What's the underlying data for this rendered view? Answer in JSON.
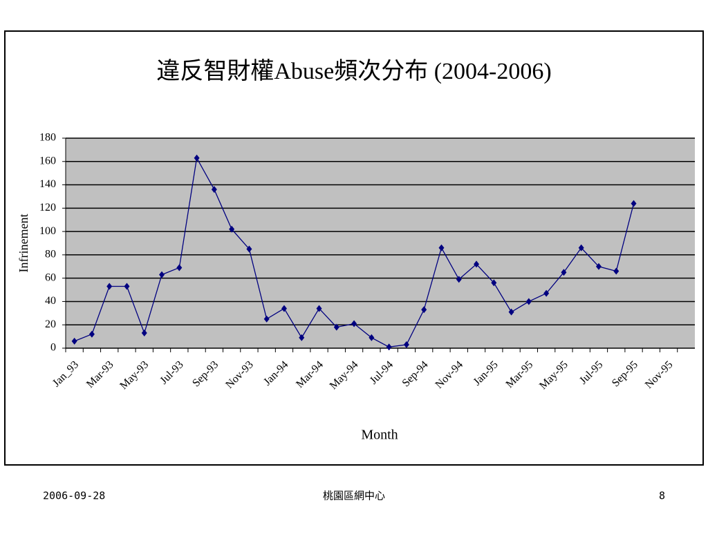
{
  "chart_data": {
    "type": "line",
    "title": "違反智財權Abuse頻次分布 (2004-2006)",
    "x_label": "Month",
    "y_label": "Infrinement",
    "categories": [
      "Jan_93",
      null,
      "Mar-93",
      null,
      "May-93",
      null,
      "Jul-93",
      null,
      "Sep-93",
      null,
      "Nov-93",
      null,
      "Jan-94",
      null,
      "Mar-94",
      null,
      "May-94",
      null,
      "Jul-94",
      null,
      "Sep-94",
      null,
      "Nov-94",
      null,
      "Jan-95",
      null,
      "Mar-95",
      null,
      "May-95",
      null,
      "Jul-95",
      null,
      "Sep-95",
      null,
      "Nov-95",
      null
    ],
    "series": [
      {
        "name": "Infrinement",
        "color": "#000080",
        "values": [
          6,
          12,
          53,
          53,
          13,
          63,
          69,
          163,
          136,
          102,
          85,
          25,
          34,
          9,
          34,
          18,
          21,
          9,
          1,
          3,
          33,
          86,
          59,
          72,
          56,
          31,
          40,
          47,
          65,
          86,
          70,
          66,
          124,
          null,
          null,
          null
        ]
      }
    ],
    "ylim": [
      0,
      180
    ],
    "yticks": [
      0,
      20,
      40,
      60,
      80,
      100,
      120,
      140,
      160,
      180
    ],
    "grid": true
  },
  "footer": {
    "date": "2006-09-28",
    "center": "桃園區網中心",
    "page": "8"
  }
}
